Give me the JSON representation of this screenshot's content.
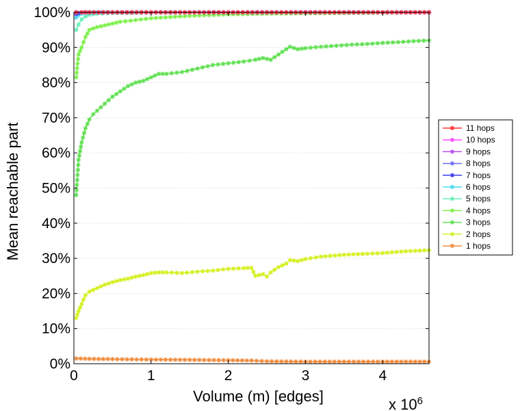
{
  "chart_data": {
    "type": "line",
    "title": "",
    "xlabel": "Volume (m) [edges]",
    "ylabel": "Mean reachable part",
    "x_multiplier_label": "x 10",
    "x_multiplier_exponent": "6",
    "xlim": [
      0,
      4.6
    ],
    "ylim": [
      0,
      100
    ],
    "xticks": [
      0,
      1,
      2,
      3,
      4
    ],
    "yticks": [
      0,
      10,
      20,
      30,
      40,
      50,
      60,
      70,
      80,
      90,
      100
    ],
    "xtick_labels": [
      "0",
      "1",
      "2",
      "3",
      "4"
    ],
    "ytick_labels": [
      "0%",
      "10%",
      "20%",
      "30%",
      "40%",
      "50%",
      "60%",
      "70%",
      "80%",
      "90%",
      "100%"
    ],
    "grid": "horizontal dotted",
    "legend_position": "right",
    "series": [
      {
        "name": "11 hops",
        "color": "#ff3030",
        "x": [
          0.03,
          0.1,
          0.2,
          0.5,
          1,
          2,
          3,
          4,
          4.6
        ],
        "y": [
          100,
          100,
          100,
          100,
          100,
          100,
          100,
          100,
          100
        ]
      },
      {
        "name": "10 hops",
        "color": "#ff44ff",
        "x": [
          0.03,
          0.1,
          0.2,
          0.5,
          1,
          2,
          3,
          4,
          4.6
        ],
        "y": [
          100,
          100,
          100,
          100,
          100,
          100,
          100,
          100,
          100
        ]
      },
      {
        "name": "9 hops",
        "color": "#b84cf0",
        "x": [
          0.03,
          0.1,
          0.2,
          0.5,
          1,
          2,
          3,
          4,
          4.6
        ],
        "y": [
          100,
          100,
          100,
          100,
          100,
          100,
          100,
          100,
          100
        ]
      },
      {
        "name": "8 hops",
        "color": "#6a6af6",
        "x": [
          0.03,
          0.1,
          0.2,
          0.5,
          1,
          2,
          3,
          4,
          4.6
        ],
        "y": [
          99.8,
          100,
          100,
          100,
          100,
          100,
          100,
          100,
          100
        ]
      },
      {
        "name": "7 hops",
        "color": "#3a3af0",
        "x": [
          0.03,
          0.06,
          0.1,
          0.2,
          0.5,
          1,
          2,
          3,
          4,
          4.6
        ],
        "y": [
          99.5,
          99.8,
          100,
          100,
          100,
          100,
          100,
          100,
          100,
          100
        ]
      },
      {
        "name": "6 hops",
        "color": "#44d8f0",
        "x": [
          0.03,
          0.06,
          0.1,
          0.15,
          0.2,
          0.3,
          0.5,
          1,
          2,
          3,
          4,
          4.6
        ],
        "y": [
          98.5,
          99.2,
          99.6,
          99.8,
          99.9,
          100,
          100,
          100,
          100,
          100,
          100,
          100
        ]
      },
      {
        "name": "5 hops",
        "color": "#66f0b8",
        "x": [
          0.03,
          0.06,
          0.1,
          0.15,
          0.2,
          0.3,
          0.5,
          0.8,
          1,
          2,
          3,
          4,
          4.6
        ],
        "y": [
          95,
          96.5,
          98,
          98.8,
          99.3,
          99.6,
          99.8,
          99.9,
          100,
          100,
          100,
          100,
          100
        ]
      },
      {
        "name": "4 hops",
        "color": "#7cf04a",
        "x": [
          0.03,
          0.06,
          0.1,
          0.15,
          0.2,
          0.3,
          0.4,
          0.5,
          0.6,
          0.8,
          1,
          1.5,
          2,
          2.5,
          3,
          3.5,
          4,
          4.6
        ],
        "y": [
          81.5,
          88,
          90,
          93,
          95,
          95.8,
          96.3,
          96.8,
          97.3,
          97.8,
          98.3,
          99,
          99.4,
          99.6,
          99.7,
          99.8,
          99.9,
          100
        ]
      },
      {
        "name": "3 hops",
        "color": "#5ee050",
        "x": [
          0.03,
          0.06,
          0.1,
          0.15,
          0.2,
          0.25,
          0.3,
          0.4,
          0.5,
          0.6,
          0.7,
          0.8,
          0.9,
          1,
          1.1,
          1.2,
          1.4,
          1.6,
          1.8,
          2,
          2.2,
          2.35,
          2.45,
          2.55,
          2.65,
          2.75,
          2.8,
          2.9,
          3,
          3.2,
          3.4,
          3.6,
          3.8,
          4,
          4.2,
          4.4,
          4.6
        ],
        "y": [
          48,
          58,
          63,
          67,
          69.5,
          71,
          72,
          74,
          76,
          77.5,
          79,
          80,
          80.5,
          81.5,
          82.5,
          82.5,
          83,
          84,
          85,
          85.5,
          86,
          86.5,
          87,
          86.5,
          88,
          89.5,
          90.2,
          89.5,
          89.8,
          90.2,
          90.5,
          90.8,
          91,
          91.3,
          91.5,
          91.8,
          92
        ]
      },
      {
        "name": "2 hops",
        "color": "#d4f020",
        "x": [
          0.03,
          0.06,
          0.1,
          0.15,
          0.2,
          0.3,
          0.4,
          0.5,
          0.6,
          0.7,
          0.8,
          0.9,
          1,
          1.1,
          1.2,
          1.4,
          1.6,
          1.8,
          2,
          2.2,
          2.3,
          2.35,
          2.45,
          2.5,
          2.55,
          2.65,
          2.75,
          2.8,
          2.9,
          3,
          3.2,
          3.5,
          3.8,
          4,
          4.3,
          4.6
        ],
        "y": [
          13,
          15,
          17,
          19.5,
          20.5,
          21.5,
          22.5,
          23.2,
          23.8,
          24.2,
          24.8,
          25.2,
          25.8,
          26,
          26,
          25.8,
          26.2,
          26.5,
          27,
          27.2,
          27.3,
          25,
          25.5,
          24.8,
          26,
          27.5,
          28.5,
          29.5,
          29.2,
          29.8,
          30.5,
          31,
          31.3,
          31.5,
          32,
          32.3
        ]
      },
      {
        "name": "1 hops",
        "color": "#f08a3a",
        "x": [
          0.03,
          0.2,
          0.5,
          1,
          1.5,
          2,
          2.3,
          2.5,
          3,
          3.5,
          4,
          4.6
        ],
        "y": [
          1.5,
          1.4,
          1.3,
          1.2,
          1.1,
          1.0,
          0.9,
          0.7,
          0.6,
          0.6,
          0.6,
          0.6
        ]
      }
    ]
  }
}
